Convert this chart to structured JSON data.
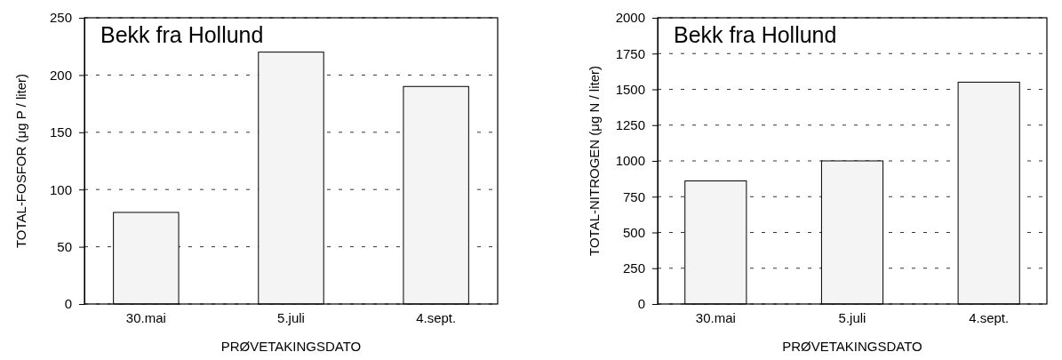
{
  "chart_data": [
    {
      "type": "bar",
      "title": "Bekk fra Hollund",
      "xlabel": "PRØVETAKINGSDATO",
      "ylabel": "TOTAL-FOSFOR (μg P / liter)",
      "categories": [
        "30.mai",
        "5.juli",
        "4.sept."
      ],
      "values": [
        80,
        220,
        190
      ],
      "color": "#f4f4f4",
      "ylim": [
        0,
        250
      ],
      "yticks": [
        0,
        50,
        100,
        150,
        200,
        250
      ],
      "grid": "y"
    },
    {
      "type": "bar",
      "title": "Bekk fra Hollund",
      "xlabel": "PRØVETAKINGSDATO",
      "ylabel": "TOTAL-NITROGEN (μg N / liter)",
      "categories": [
        "30.mai",
        "5.juli",
        "4.sept."
      ],
      "values": [
        860,
        1000,
        1550
      ],
      "color": "#f4f4f4",
      "ylim": [
        0,
        2000
      ],
      "yticks": [
        0,
        250,
        500,
        750,
        1000,
        1250,
        1500,
        1750,
        2000
      ],
      "grid": "y"
    }
  ]
}
